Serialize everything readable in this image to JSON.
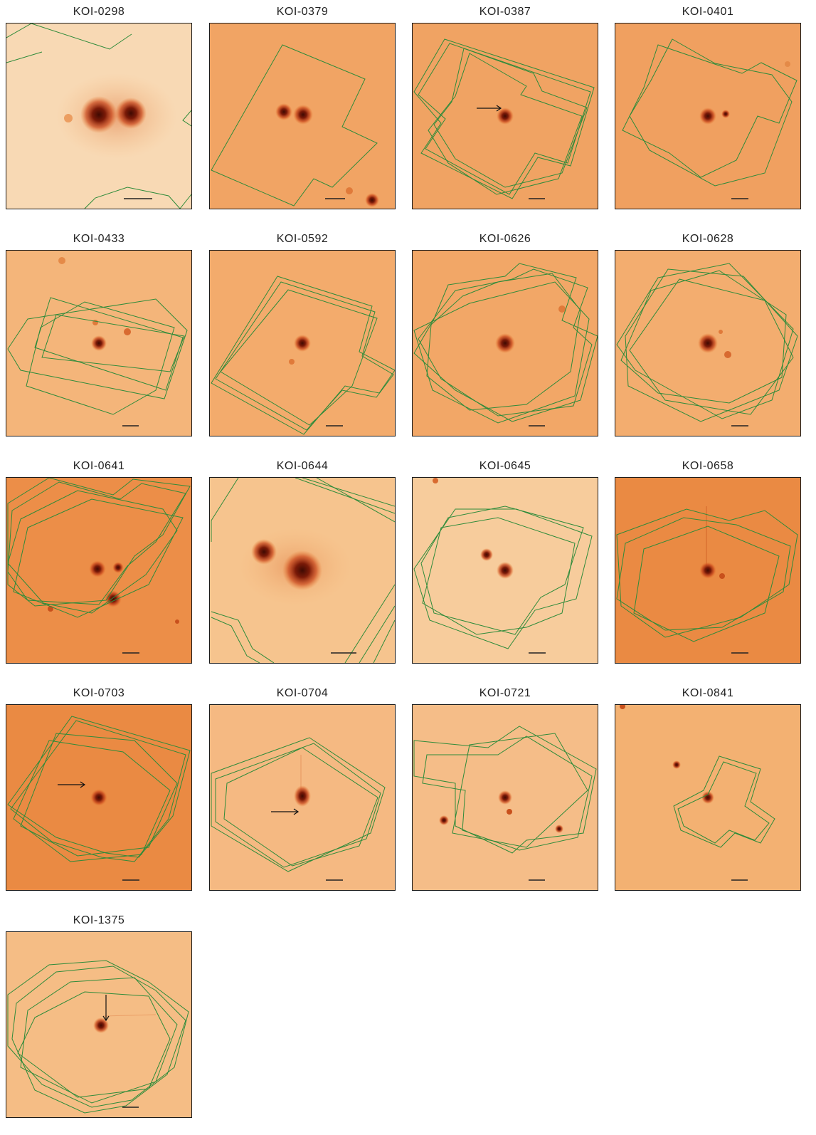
{
  "figure": {
    "panels": [
      {
        "label": "KOI-0298"
      },
      {
        "label": "KOI-0379"
      },
      {
        "label": "KOI-0387"
      },
      {
        "label": "KOI-0401"
      },
      {
        "label": "KOI-0433"
      },
      {
        "label": "KOI-0592"
      },
      {
        "label": "KOI-0626"
      },
      {
        "label": "KOI-0628"
      },
      {
        "label": "KOI-0641"
      },
      {
        "label": "KOI-0644"
      },
      {
        "label": "KOI-0645"
      },
      {
        "label": "KOI-0658"
      },
      {
        "label": "KOI-0703"
      },
      {
        "label": "KOI-0704"
      },
      {
        "label": "KOI-0721"
      },
      {
        "label": "KOI-0841"
      },
      {
        "label": "KOI-1375"
      }
    ],
    "colors": {
      "footprint_outline": "#2e8b3a",
      "star_core": "#5a0f04",
      "background_light": "#f8d8b0",
      "background_dark": "#e8792e",
      "frame": "#1b1b1b"
    }
  }
}
